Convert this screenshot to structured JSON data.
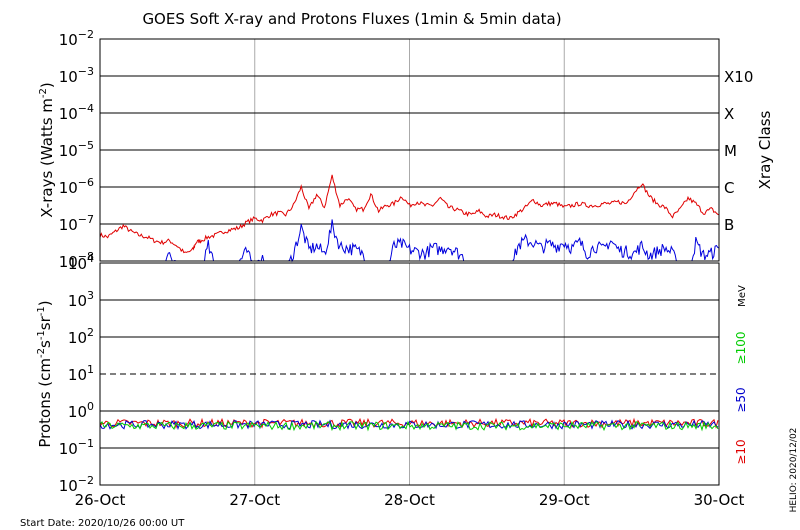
{
  "title": "GOES Soft X-ray and Protons Fluxes   (1min & 5min data)",
  "footer": {
    "start_date": "Start Date: 2020/10/26 00:00 UT",
    "credit": "HELIO: 2020/12/02"
  },
  "colors": {
    "xray_long": "#e00000",
    "xray_short": "#0000dd",
    "proton_10": "#e00000",
    "proton_50": "#0000cc",
    "proton_100": "#00cc00",
    "grid_major": "#000000",
    "grid_minor": "#aaaaaa"
  },
  "chart_data": [
    {
      "type": "line",
      "panel": "xrays",
      "ylabel_main": "X-rays (Watts m",
      "ylabel_exp": "-2",
      "ylabel_close": ")",
      "yscale": "log",
      "ylim_exp": [
        -8,
        -2
      ],
      "ytick_exponents": [
        -8,
        -7,
        -6,
        -5,
        -4,
        -3,
        -2
      ],
      "xlim_days": [
        0,
        4
      ],
      "x_ticklabels": [
        "26-Oct",
        "27-Oct",
        "28-Oct",
        "29-Oct",
        "30-Oct"
      ],
      "right_axis_title": "Xray Class",
      "class_labels": [
        {
          "label": "B",
          "exp": -7
        },
        {
          "label": "C",
          "exp": -6
        },
        {
          "label": "M",
          "exp": -5
        },
        {
          "label": "X",
          "exp": -4
        },
        {
          "label": "X10",
          "exp": -3
        }
      ],
      "grid": true,
      "series": [
        {
          "key": "long",
          "x": [
            0.0,
            0.05,
            0.1,
            0.15,
            0.2,
            0.25,
            0.3,
            0.35,
            0.4,
            0.45,
            0.5,
            0.55,
            0.6,
            0.62,
            0.65,
            0.7,
            0.75,
            0.8,
            0.85,
            0.9,
            0.95,
            1.0,
            1.05,
            1.1,
            1.15,
            1.2,
            1.25,
            1.3,
            1.35,
            1.4,
            1.45,
            1.5,
            1.55,
            1.6,
            1.65,
            1.7,
            1.75,
            1.8,
            1.85,
            1.9,
            1.95,
            2.0,
            2.05,
            2.1,
            2.15,
            2.2,
            2.25,
            2.3,
            2.35,
            2.4,
            2.45,
            2.5,
            2.55,
            2.6,
            2.65,
            2.7,
            2.75,
            2.8,
            2.85,
            2.9,
            2.95,
            3.0,
            3.05,
            3.1,
            3.15,
            3.2,
            3.25,
            3.3,
            3.35,
            3.4,
            3.45,
            3.5,
            3.55,
            3.6,
            3.65,
            3.7,
            3.75,
            3.8,
            3.85,
            3.9,
            3.95,
            4.0
          ],
          "y": [
            -7.3,
            -7.35,
            -7.2,
            -7.05,
            -7.2,
            -7.3,
            -7.35,
            -7.45,
            -7.5,
            -7.45,
            -7.6,
            -7.8,
            -7.7,
            -7.5,
            -7.45,
            -7.35,
            -7.3,
            -7.2,
            -7.15,
            -7.1,
            -6.95,
            -6.85,
            -6.9,
            -6.75,
            -6.7,
            -6.75,
            -6.5,
            -6.0,
            -6.6,
            -6.2,
            -6.55,
            -5.7,
            -6.5,
            -6.3,
            -6.6,
            -6.6,
            -6.2,
            -6.65,
            -6.5,
            -6.45,
            -6.25,
            -6.5,
            -6.4,
            -6.5,
            -6.5,
            -6.3,
            -6.55,
            -6.6,
            -6.7,
            -6.75,
            -6.65,
            -6.8,
            -6.75,
            -6.8,
            -6.85,
            -6.7,
            -6.55,
            -6.35,
            -6.5,
            -6.45,
            -6.45,
            -6.55,
            -6.5,
            -6.45,
            -6.5,
            -6.5,
            -6.45,
            -6.45,
            -6.4,
            -6.45,
            -6.15,
            -5.9,
            -6.25,
            -6.45,
            -6.55,
            -6.8,
            -6.6,
            -6.3,
            -6.45,
            -6.7,
            -6.6,
            -6.75
          ]
        },
        {
          "key": "short",
          "x": [
            0.0,
            0.05,
            0.1,
            0.12,
            0.15,
            0.2,
            0.25,
            0.28,
            0.3,
            0.35,
            0.4,
            0.45,
            0.5,
            0.55,
            0.6,
            0.65,
            0.7,
            0.75,
            0.8,
            0.85,
            0.9,
            0.95,
            1.0,
            1.05,
            1.1,
            1.15,
            1.2,
            1.25,
            1.3,
            1.35,
            1.4,
            1.45,
            1.5,
            1.55,
            1.6,
            1.65,
            1.7,
            1.75,
            1.8,
            1.85,
            1.9,
            1.95,
            2.0,
            2.05,
            2.1,
            2.15,
            2.2,
            2.25,
            2.3,
            2.35,
            2.4,
            2.45,
            2.5,
            2.55,
            2.6,
            2.65,
            2.7,
            2.75,
            2.8,
            2.85,
            2.9,
            2.95,
            3.0,
            3.05,
            3.1,
            3.15,
            3.2,
            3.25,
            3.3,
            3.35,
            3.4,
            3.45,
            3.5,
            3.55,
            3.6,
            3.65,
            3.7,
            3.75,
            3.8,
            3.85,
            3.9,
            3.95,
            4.0
          ],
          "y": [
            -8.3,
            -8.3,
            -8.3,
            -8.05,
            -8.3,
            -8.3,
            -8.3,
            -8.1,
            -8.3,
            -8.3,
            -8.3,
            -7.85,
            -8.2,
            -8.3,
            -8.3,
            -8.3,
            -7.6,
            -8.3,
            -8.3,
            -8.3,
            -8.0,
            -7.75,
            -8.3,
            -7.9,
            -8.3,
            -8.3,
            -8.3,
            -7.8,
            -7.1,
            -7.7,
            -7.6,
            -7.8,
            -7.05,
            -7.6,
            -7.65,
            -7.7,
            -7.8,
            -8.3,
            -8.3,
            -8.3,
            -7.6,
            -7.55,
            -7.7,
            -7.75,
            -7.8,
            -7.65,
            -7.7,
            -7.6,
            -7.75,
            -7.9,
            -8.3,
            -8.3,
            -8.3,
            -8.3,
            -8.3,
            -8.3,
            -7.6,
            -7.45,
            -7.5,
            -7.65,
            -7.55,
            -7.6,
            -7.5,
            -7.65,
            -7.5,
            -7.8,
            -7.6,
            -7.7,
            -7.45,
            -7.7,
            -7.75,
            -7.8,
            -7.6,
            -7.85,
            -7.75,
            -7.65,
            -7.8,
            -8.3,
            -8.3,
            -7.5,
            -7.85,
            -7.8,
            -7.65
          ]
        }
      ]
    },
    {
      "type": "line",
      "panel": "protons",
      "ylabel_main": "Protons (cm",
      "ylabel_sup1": "-2",
      "ylabel_mid1": "s",
      "ylabel_sup2": "-1",
      "ylabel_mid2": "sr",
      "ylabel_sup3": "-1",
      "ylabel_close": ")",
      "yscale": "log",
      "ylim_exp": [
        -2,
        4
      ],
      "ytick_exponents": [
        -2,
        -1,
        0,
        1,
        2,
        3,
        4
      ],
      "dashed_level_exp": 1,
      "xlim_days": [
        0,
        4
      ],
      "right_unit": "MeV",
      "legend": [
        {
          "label": "≥100",
          "key": "proton_100"
        },
        {
          "label": "≥50",
          "key": "proton_50"
        },
        {
          "label": "≥10",
          "key": "proton_10"
        }
      ],
      "series": [
        {
          "key": "proton_10",
          "level_exp": -0.33
        },
        {
          "key": "proton_50",
          "level_exp": -0.37
        },
        {
          "key": "proton_100",
          "level_exp": -0.4
        }
      ]
    }
  ]
}
